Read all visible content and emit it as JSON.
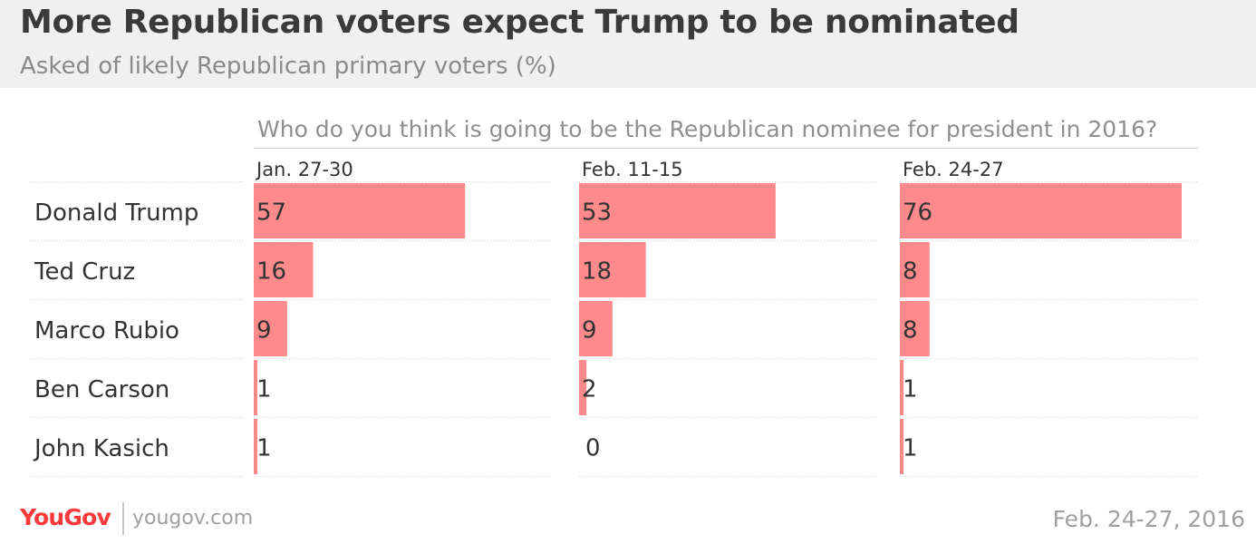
{
  "title": "More Republican voters expect Trump to be nominated",
  "subtitle": "Asked of likely Republican primary voters (%)",
  "question": "Who do you think is going to be the Republican nominee for president in 2016?",
  "footer": {
    "logo": "YouGov",
    "url": "yougov.com",
    "date": "Feb. 24-27, 2016"
  },
  "colors": {
    "bar": "#ff8a8c",
    "text": "#333333",
    "grid": "#d0d0d0"
  },
  "chart_data": {
    "type": "bar",
    "orientation": "horizontal",
    "categories": [
      "Donald Trump",
      "Ted Cruz",
      "Marco Rubio",
      "Ben Carson",
      "John Kasich"
    ],
    "series": [
      {
        "name": "Jan. 27-30",
        "values": [
          57,
          16,
          9,
          1,
          1
        ]
      },
      {
        "name": "Feb. 11-15",
        "values": [
          53,
          18,
          9,
          2,
          0
        ]
      },
      {
        "name": "Feb. 24-27",
        "values": [
          76,
          8,
          8,
          1,
          1
        ]
      }
    ],
    "xlim": [
      0,
      76
    ]
  }
}
